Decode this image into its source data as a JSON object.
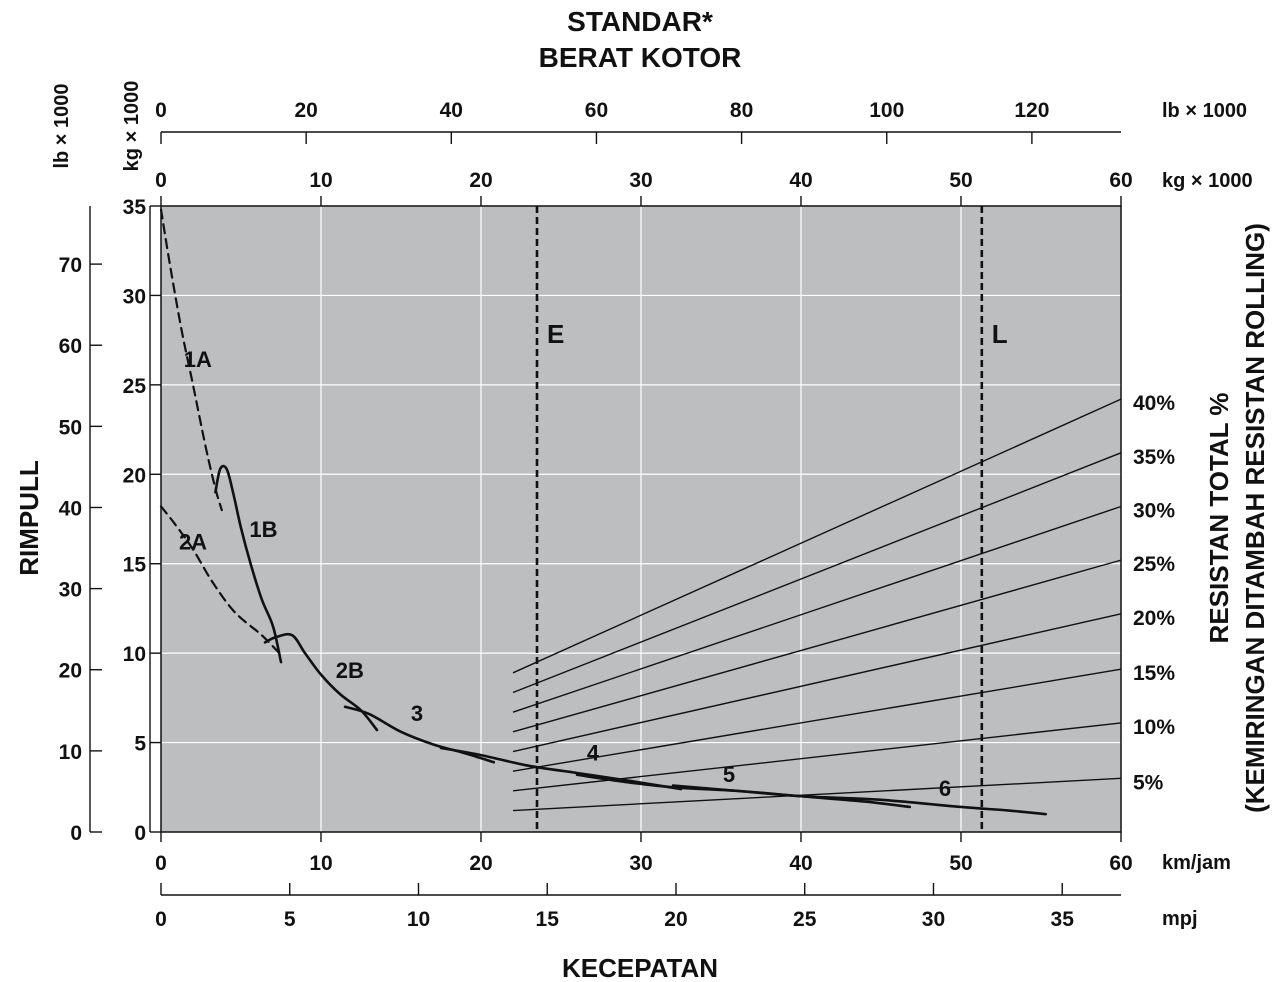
{
  "chart_data": {
    "type": "line",
    "title": "STANDAR*",
    "subtitle": "BERAT KOTOR",
    "xlabel": "KECEPATAN",
    "ylabel": "RIMPULL",
    "right_label_line1": "RESISTAN TOTAL %",
    "right_label_line2": "(KEMIRINGAN DITAMBAH RESISTAN ROLLING)",
    "grid": true,
    "background_color": "#bdbec0",
    "axes": {
      "x_bottom_kmh": {
        "unit": "km/jam",
        "range": [
          0,
          60
        ],
        "ticks": [
          "0",
          "10",
          "20",
          "30",
          "40",
          "50",
          "60"
        ]
      },
      "x_bottom_mph": {
        "unit": "mpj",
        "ticks": [
          "0",
          "5",
          "10",
          "15",
          "20",
          "25",
          "30",
          "35"
        ]
      },
      "y_left_kg": {
        "unit": "kg × 1000",
        "range": [
          0,
          35
        ],
        "ticks": [
          "0",
          "5",
          "10",
          "15",
          "20",
          "25",
          "30",
          "35"
        ]
      },
      "y_left_lb": {
        "unit": "lb × 1000",
        "ticks": [
          "0",
          "10",
          "20",
          "30",
          "40",
          "50",
          "60",
          "70"
        ]
      },
      "weight_top_kg": {
        "unit": "kg × 1000",
        "range": [
          0,
          60
        ],
        "ticks": [
          "0",
          "10",
          "20",
          "30",
          "40",
          "50",
          "60"
        ]
      },
      "weight_top_lb": {
        "unit": "lb × 1000",
        "ticks": [
          "0",
          "20",
          "40",
          "60",
          "80",
          "100",
          "120"
        ]
      }
    },
    "weight_lines": [
      {
        "label": "E",
        "weight_kg_x1000": 23.5
      },
      {
        "label": "L",
        "weight_kg_x1000": 51.3
      }
    ],
    "resistance_lines": [
      {
        "label": "5%",
        "start_kg_x1000": 1.2,
        "end_kg_x1000": 3.0
      },
      {
        "label": "10%",
        "start_kg_x1000": 2.3,
        "end_kg_x1000": 6.1
      },
      {
        "label": "15%",
        "start_kg_x1000": 3.4,
        "end_kg_x1000": 9.1
      },
      {
        "label": "20%",
        "start_kg_x1000": 4.5,
        "end_kg_x1000": 12.2
      },
      {
        "label": "25%",
        "start_kg_x1000": 5.6,
        "end_kg_x1000": 15.2
      },
      {
        "label": "30%",
        "start_kg_x1000": 6.7,
        "end_kg_x1000": 18.2
      },
      {
        "label": "35%",
        "start_kg_x1000": 7.8,
        "end_kg_x1000": 21.2
      },
      {
        "label": "40%",
        "start_kg_x1000": 8.9,
        "end_kg_x1000": 24.2
      }
    ],
    "series": [
      {
        "name": "1A",
        "style": "dashed",
        "x": [
          0,
          0.6,
          1.3,
          2.0,
          2.8,
          3.4,
          3.8
        ],
        "y": [
          34.8,
          31.5,
          28.0,
          25.0,
          21.5,
          19.2,
          18.0
        ]
      },
      {
        "name": "1B",
        "style": "solid",
        "x": [
          3.4,
          3.7,
          4.1,
          4.5,
          5.0,
          5.6,
          6.3,
          7.0,
          7.5
        ],
        "y": [
          19.0,
          20.3,
          20.3,
          19.0,
          17.0,
          15.0,
          13.0,
          11.5,
          9.5
        ]
      },
      {
        "name": "2A",
        "style": "dashed",
        "x": [
          0,
          0.8,
          2.0,
          3.2,
          4.6,
          6.3,
          7.5
        ],
        "y": [
          18.2,
          17.3,
          15.8,
          14.0,
          12.3,
          11.0,
          9.9
        ]
      },
      {
        "name": "2B",
        "style": "solid",
        "x": [
          6.5,
          7.2,
          8.2,
          9.0,
          10.0,
          11.2,
          12.5,
          13.5
        ],
        "y": [
          10.6,
          10.9,
          11.0,
          10.0,
          8.8,
          7.7,
          6.8,
          5.7
        ]
      },
      {
        "name": "3",
        "style": "solid",
        "x": [
          11.5,
          13.0,
          15.0,
          17.0,
          19.0,
          20.8
        ],
        "y": [
          7.0,
          6.6,
          5.6,
          4.9,
          4.4,
          3.9
        ]
      },
      {
        "name": "4",
        "style": "solid",
        "x": [
          17.5,
          20.0,
          23.0,
          26.0,
          29.0,
          32.5
        ],
        "y": [
          4.7,
          4.3,
          3.7,
          3.3,
          2.9,
          2.4
        ]
      },
      {
        "name": "5",
        "style": "solid",
        "x": [
          26.0,
          29.0,
          32.0,
          36.0,
          40.0,
          44.0,
          46.8
        ],
        "y": [
          3.2,
          2.8,
          2.5,
          2.3,
          2.0,
          1.7,
          1.4
        ]
      },
      {
        "name": "6",
        "style": "solid",
        "x": [
          32.0,
          36.0,
          40.0,
          45.0,
          50.0,
          53.0,
          55.3
        ],
        "y": [
          2.6,
          2.3,
          2.0,
          1.8,
          1.4,
          1.2,
          1.0
        ]
      }
    ]
  }
}
